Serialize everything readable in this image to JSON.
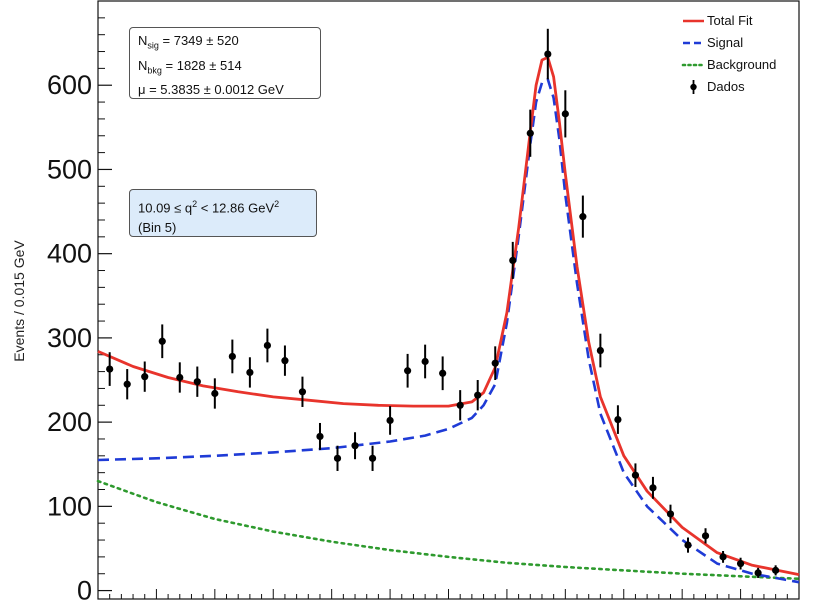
{
  "chart_data": {
    "type": "line",
    "ylabel": "Events / 0.015 GeV",
    "xlabel": "",
    "ylim": [
      -10,
      700
    ],
    "xlim": [
      5.0,
      5.6
    ],
    "yticks": [
      0,
      100,
      200,
      300,
      400,
      500,
      600
    ],
    "grid": false,
    "legend_position": "top-right",
    "legend": [
      {
        "label": "Total Fit",
        "style": "solid",
        "color": "#e8342c"
      },
      {
        "label": "Signal",
        "style": "dashed",
        "color": "#1f3bd6"
      },
      {
        "label": "Background",
        "style": "dotted",
        "color": "#2e9a2e"
      },
      {
        "label": "Dados",
        "style": "marker",
        "color": "#000000"
      }
    ],
    "annotations": {
      "nsig": "N<sub>sig</sub> = 7349 ± 520",
      "nbkg": "N<sub>bkg</sub> = 1828 ± 514",
      "mu": "μ = 5.3835 ± 0.0012 GeV",
      "bin_range": "10.09 ≤ q<sup>2</sup> < 12.86 GeV<sup>2</sup>",
      "bin_name": "(Bin 5)"
    },
    "series": [
      {
        "name": "Dados",
        "x": [
          5.01,
          5.025,
          5.04,
          5.055,
          5.07,
          5.085,
          5.1,
          5.115,
          5.13,
          5.145,
          5.16,
          5.175,
          5.19,
          5.205,
          5.22,
          5.235,
          5.25,
          5.265,
          5.28,
          5.295,
          5.31,
          5.325,
          5.34,
          5.355,
          5.37,
          5.385,
          5.4,
          5.415,
          5.43,
          5.445,
          5.46,
          5.475,
          5.49,
          5.505,
          5.52,
          5.535,
          5.55,
          5.565,
          5.58
        ],
        "y": [
          263,
          245,
          254,
          296,
          253,
          248,
          234,
          278,
          259,
          291,
          273,
          236,
          183,
          157,
          172,
          157,
          202,
          261,
          272,
          258,
          220,
          232,
          270,
          392,
          543,
          637,
          566,
          444,
          285,
          203,
          137,
          122,
          91,
          54,
          65,
          40,
          32,
          21,
          24
        ],
        "yerr": [
          20,
          18,
          18,
          20,
          18,
          18,
          18,
          20,
          18,
          20,
          18,
          18,
          16,
          15,
          16,
          15,
          17,
          20,
          20,
          20,
          18,
          18,
          20,
          22,
          28,
          30,
          28,
          25,
          20,
          17,
          14,
          13,
          11,
          9,
          9,
          7,
          7,
          6,
          6
        ]
      },
      {
        "name": "Total Fit",
        "x": [
          5.0,
          5.03,
          5.06,
          5.09,
          5.12,
          5.15,
          5.18,
          5.21,
          5.24,
          5.27,
          5.3,
          5.32,
          5.33,
          5.34,
          5.35,
          5.36,
          5.37,
          5.375,
          5.38,
          5.385,
          5.39,
          5.395,
          5.4,
          5.41,
          5.42,
          5.43,
          5.45,
          5.47,
          5.5,
          5.53,
          5.56,
          5.6
        ],
        "y": [
          284,
          266,
          253,
          243,
          236,
          230,
          226,
          222,
          220,
          219,
          219,
          224,
          235,
          265,
          330,
          430,
          545,
          600,
          630,
          633,
          610,
          555,
          495,
          385,
          295,
          230,
          160,
          118,
          75,
          45,
          30,
          19
        ]
      },
      {
        "name": "Signal",
        "x": [
          5.0,
          5.05,
          5.1,
          5.15,
          5.2,
          5.25,
          5.28,
          5.3,
          5.32,
          5.33,
          5.34,
          5.35,
          5.36,
          5.37,
          5.375,
          5.38,
          5.385,
          5.39,
          5.395,
          5.4,
          5.41,
          5.42,
          5.43,
          5.45,
          5.47,
          5.5,
          5.53,
          5.56,
          5.6
        ],
        "y": [
          155,
          157,
          160,
          164,
          169,
          177,
          184,
          192,
          205,
          220,
          245,
          318,
          420,
          530,
          580,
          603,
          607,
          585,
          535,
          470,
          365,
          275,
          210,
          140,
          100,
          60,
          32,
          20,
          10
        ]
      },
      {
        "name": "Background",
        "x": [
          5.0,
          5.05,
          5.1,
          5.15,
          5.2,
          5.25,
          5.3,
          5.35,
          5.4,
          5.45,
          5.5,
          5.55,
          5.6
        ],
        "y": [
          130,
          105,
          85,
          70,
          58,
          48,
          40,
          33,
          28,
          24,
          20,
          17,
          14
        ]
      }
    ]
  }
}
